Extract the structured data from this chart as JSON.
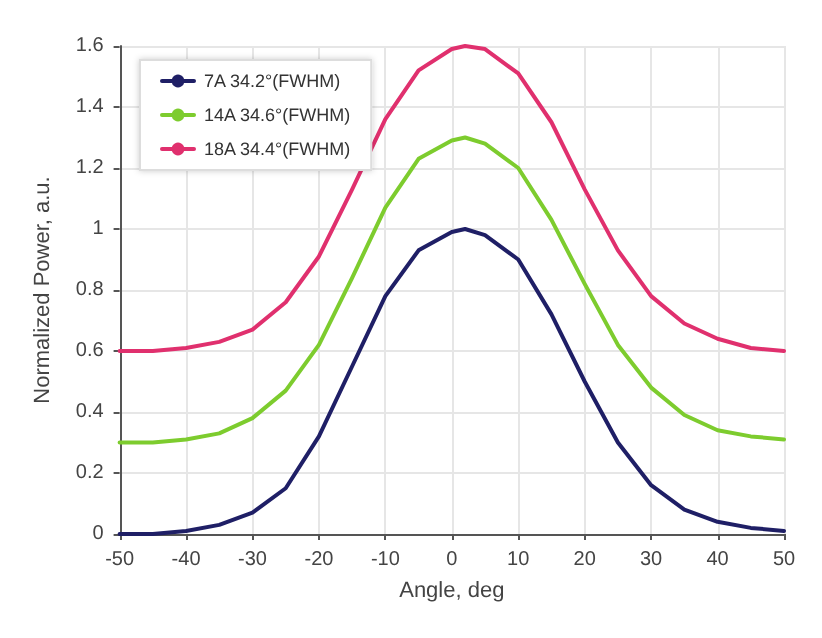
{
  "chart_data": {
    "type": "line",
    "xlabel": "Angle, deg",
    "ylabel": "Normalized Power, a.u.",
    "x": [
      -50,
      -45,
      -40,
      -35,
      -30,
      -25,
      -20,
      -15,
      -10,
      -5,
      0,
      2,
      5,
      10,
      15,
      20,
      25,
      30,
      35,
      40,
      45,
      50
    ],
    "series": [
      {
        "name": "7A 34.2°(FWHM)",
        "color": "#1f1f66",
        "values": [
          0,
          0,
          0.01,
          0.03,
          0.07,
          0.15,
          0.32,
          0.55,
          0.78,
          0.93,
          0.99,
          1.0,
          0.98,
          0.9,
          0.72,
          0.5,
          0.3,
          0.16,
          0.08,
          0.04,
          0.02,
          0.01
        ]
      },
      {
        "name": "14A 34.6°(FWHM)",
        "color": "#7dcc2e",
        "values": [
          0.3,
          0.3,
          0.31,
          0.33,
          0.38,
          0.47,
          0.62,
          0.84,
          1.07,
          1.23,
          1.29,
          1.3,
          1.28,
          1.2,
          1.03,
          0.82,
          0.62,
          0.48,
          0.39,
          0.34,
          0.32,
          0.31
        ]
      },
      {
        "name": "18A 34.4°(FWHM)",
        "color": "#e0306e",
        "values": [
          0.6,
          0.6,
          0.61,
          0.63,
          0.67,
          0.76,
          0.91,
          1.13,
          1.36,
          1.52,
          1.59,
          1.6,
          1.59,
          1.51,
          1.35,
          1.13,
          0.93,
          0.78,
          0.69,
          0.64,
          0.61,
          0.6
        ]
      }
    ],
    "xlim": [
      -50,
      50
    ],
    "xticks": [
      -50,
      -40,
      -30,
      -20,
      -10,
      0,
      10,
      20,
      30,
      40,
      50
    ],
    "ylim": [
      0,
      1.6
    ],
    "yticks": [
      0,
      0.2,
      0.4,
      0.6,
      0.8,
      1,
      1.2,
      1.4,
      1.6
    ],
    "grid": true,
    "legend": "top left",
    "marker": "none",
    "line_style": "solid"
  }
}
